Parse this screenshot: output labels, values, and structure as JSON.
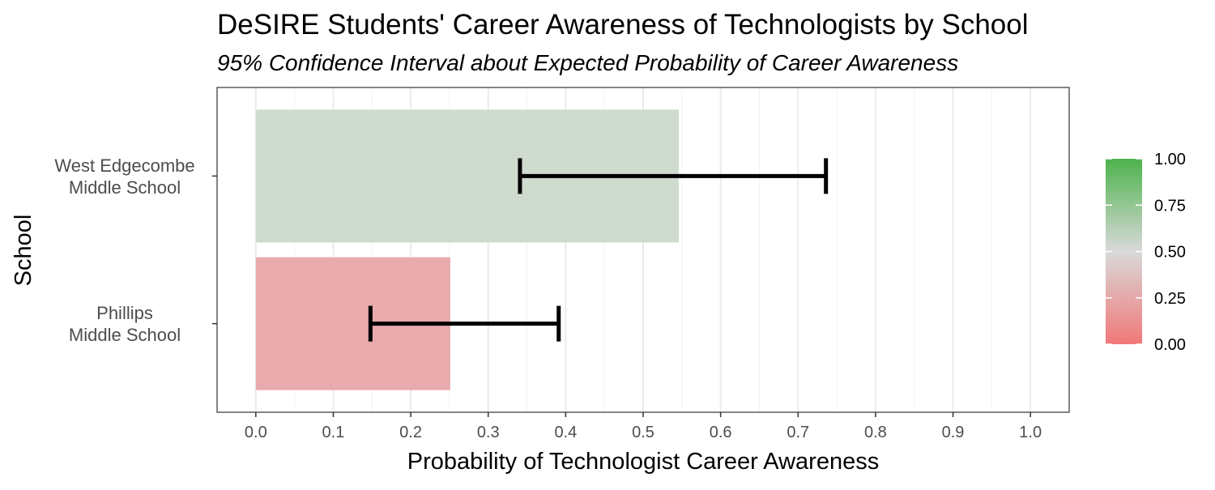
{
  "chart_data": {
    "type": "bar",
    "orientation": "horizontal",
    "title": "DeSIRE Students' Career Awareness of Technologists by School",
    "subtitle": "95% Confidence Interval about Expected Probability of Career Awareness",
    "xlabel": "Probability of Technologist Career Awareness",
    "ylabel": "School",
    "xlim": [
      -0.05,
      1.05
    ],
    "x_ticks": [
      "0.0",
      "0.1",
      "0.2",
      "0.3",
      "0.4",
      "0.5",
      "0.6",
      "0.7",
      "0.8",
      "0.9",
      "1.0"
    ],
    "grid": true,
    "categories": [
      {
        "lines": [
          "West Edgecombe",
          "Middle School"
        ]
      },
      {
        "lines": [
          "Phillips",
          "Middle School"
        ]
      }
    ],
    "values": [
      0.546,
      0.251
    ],
    "ci_lower": [
      0.341,
      0.148
    ],
    "ci_upper": [
      0.736,
      0.391
    ],
    "bar_colors": [
      "#cfdbcf",
      "#e8aaac"
    ],
    "error_bar_color": "#000000",
    "legend": {
      "position": "right",
      "type": "colorbar",
      "ticks": [
        "0.00",
        "0.25",
        "0.50",
        "0.75",
        "1.00"
      ],
      "color_low": "#f07878",
      "color_mid": "#d9d9d9",
      "color_high": "#4db34d"
    }
  }
}
